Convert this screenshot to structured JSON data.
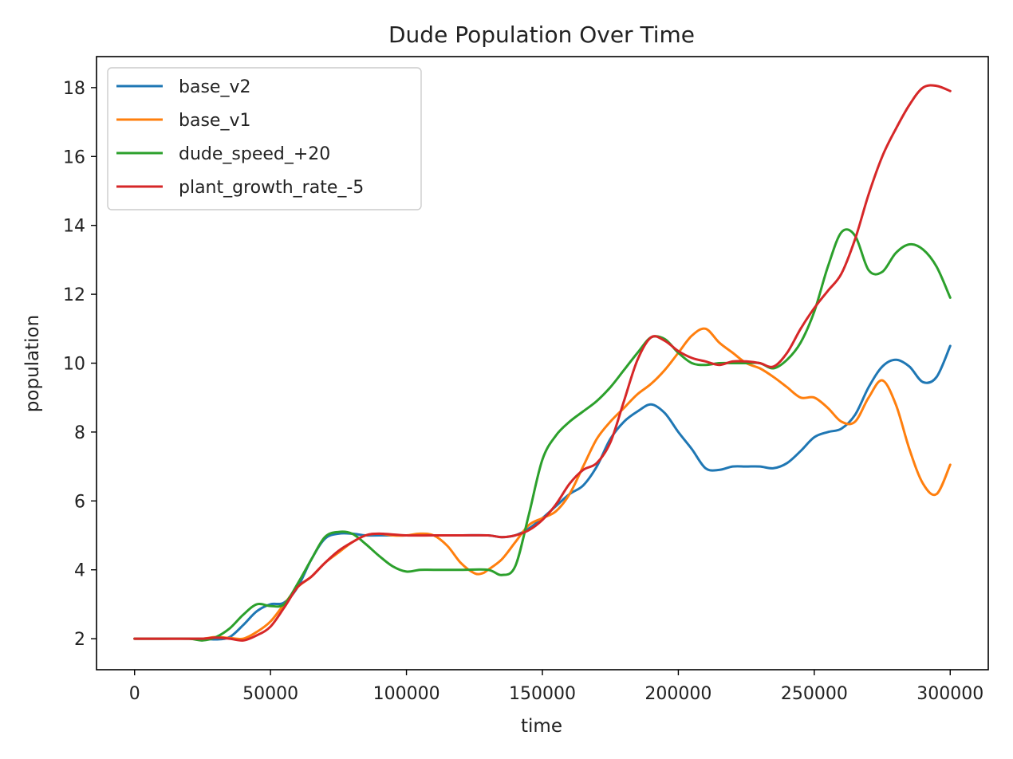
{
  "chart_data": {
    "type": "line",
    "title": "Dude Population Over Time",
    "xlabel": "time",
    "ylabel": "population",
    "xlim": [
      -14000,
      314000
    ],
    "ylim": [
      1.1,
      18.9
    ],
    "xticks": [
      0,
      50000,
      100000,
      150000,
      200000,
      250000,
      300000
    ],
    "yticks": [
      2,
      4,
      6,
      8,
      10,
      12,
      14,
      16,
      18
    ],
    "grid": false,
    "legend": "top-left",
    "series": [
      {
        "name": "base_v2",
        "color": "#1f77b4",
        "x": [
          0,
          10000,
          20000,
          25000,
          30000,
          35000,
          40000,
          45000,
          50000,
          55000,
          60000,
          65000,
          70000,
          75000,
          80000,
          85000,
          90000,
          100000,
          110000,
          120000,
          130000,
          135000,
          140000,
          145000,
          150000,
          155000,
          160000,
          165000,
          170000,
          175000,
          180000,
          185000,
          190000,
          195000,
          200000,
          205000,
          210000,
          215000,
          220000,
          225000,
          230000,
          235000,
          240000,
          245000,
          250000,
          255000,
          260000,
          265000,
          270000,
          275000,
          280000,
          285000,
          290000,
          295000,
          300000
        ],
        "y": [
          2,
          2,
          2,
          2,
          1.98,
          2.05,
          2.4,
          2.8,
          3.0,
          3.05,
          3.5,
          4.3,
          4.9,
          5.05,
          5.05,
          5.0,
          5.0,
          5.0,
          5.0,
          5.0,
          5.0,
          4.95,
          5.0,
          5.2,
          5.5,
          5.85,
          6.2,
          6.45,
          7.0,
          7.8,
          8.3,
          8.6,
          8.8,
          8.55,
          8.0,
          7.5,
          6.95,
          6.9,
          7.0,
          7.0,
          7.0,
          6.95,
          7.1,
          7.45,
          7.85,
          8.0,
          8.1,
          8.5,
          9.3,
          9.9,
          10.1,
          9.9,
          9.45,
          9.6,
          10.5
        ]
      },
      {
        "name": "base_v1",
        "color": "#ff7f0e",
        "x": [
          0,
          10000,
          20000,
          25000,
          30000,
          35000,
          40000,
          45000,
          50000,
          55000,
          60000,
          65000,
          70000,
          75000,
          80000,
          85000,
          90000,
          95000,
          100000,
          105000,
          110000,
          115000,
          120000,
          125000,
          128000,
          130000,
          135000,
          140000,
          145000,
          150000,
          155000,
          160000,
          165000,
          170000,
          175000,
          180000,
          185000,
          190000,
          195000,
          200000,
          205000,
          210000,
          215000,
          220000,
          225000,
          230000,
          235000,
          240000,
          245000,
          250000,
          255000,
          260000,
          265000,
          270000,
          275000,
          280000,
          285000,
          290000,
          295000,
          300000
        ],
        "y": [
          2,
          2,
          2,
          2,
          2.05,
          2.02,
          2.0,
          2.2,
          2.5,
          3.0,
          3.5,
          3.8,
          4.2,
          4.5,
          4.8,
          5.0,
          5.05,
          5.0,
          5.0,
          5.05,
          5.0,
          4.7,
          4.2,
          3.9,
          3.9,
          4.0,
          4.3,
          4.8,
          5.3,
          5.5,
          5.7,
          6.2,
          7.0,
          7.8,
          8.3,
          8.7,
          9.1,
          9.4,
          9.8,
          10.3,
          10.8,
          11.0,
          10.6,
          10.3,
          10.0,
          9.85,
          9.6,
          9.3,
          9.0,
          9.0,
          8.7,
          8.3,
          8.3,
          9.0,
          9.5,
          8.8,
          7.5,
          6.5,
          6.2,
          7.05
        ]
      },
      {
        "name": "dude_speed_+20",
        "color": "#2ca02c",
        "x": [
          0,
          10000,
          20000,
          25000,
          30000,
          35000,
          40000,
          45000,
          50000,
          55000,
          60000,
          65000,
          70000,
          75000,
          80000,
          85000,
          90000,
          95000,
          100000,
          105000,
          110000,
          120000,
          130000,
          135000,
          140000,
          145000,
          150000,
          155000,
          160000,
          165000,
          170000,
          175000,
          180000,
          185000,
          190000,
          195000,
          200000,
          205000,
          210000,
          215000,
          220000,
          225000,
          230000,
          235000,
          240000,
          245000,
          250000,
          255000,
          260000,
          265000,
          270000,
          275000,
          280000,
          285000,
          290000,
          295000,
          300000
        ],
        "y": [
          2,
          2,
          2,
          1.95,
          2.05,
          2.3,
          2.7,
          3.0,
          2.95,
          3.0,
          3.6,
          4.3,
          4.95,
          5.1,
          5.05,
          4.75,
          4.4,
          4.1,
          3.95,
          4.0,
          4.0,
          4.0,
          4.0,
          3.85,
          4.1,
          5.6,
          7.2,
          7.9,
          8.3,
          8.6,
          8.9,
          9.3,
          9.8,
          10.3,
          10.75,
          10.7,
          10.3,
          10.0,
          9.95,
          10.0,
          10.0,
          10.0,
          10.0,
          9.85,
          10.1,
          10.6,
          11.5,
          12.8,
          13.8,
          13.7,
          12.7,
          12.65,
          13.2,
          13.45,
          13.3,
          12.8,
          11.9
        ]
      },
      {
        "name": "plant_growth_rate_-5",
        "color": "#d62728",
        "x": [
          0,
          10000,
          20000,
          25000,
          30000,
          35000,
          40000,
          45000,
          50000,
          55000,
          60000,
          65000,
          70000,
          75000,
          80000,
          85000,
          90000,
          100000,
          110000,
          120000,
          130000,
          135000,
          140000,
          145000,
          150000,
          155000,
          160000,
          165000,
          170000,
          175000,
          180000,
          185000,
          190000,
          195000,
          200000,
          205000,
          210000,
          215000,
          220000,
          225000,
          230000,
          235000,
          240000,
          245000,
          250000,
          255000,
          260000,
          265000,
          270000,
          275000,
          280000,
          285000,
          290000,
          295000,
          300000
        ],
        "y": [
          2,
          2,
          2,
          2,
          2.03,
          2.0,
          1.95,
          2.1,
          2.35,
          2.9,
          3.5,
          3.8,
          4.2,
          4.55,
          4.8,
          5.0,
          5.05,
          5.0,
          5.0,
          5.0,
          5.0,
          4.95,
          5.0,
          5.15,
          5.45,
          5.9,
          6.5,
          6.9,
          7.1,
          7.7,
          8.9,
          10.1,
          10.75,
          10.65,
          10.35,
          10.15,
          10.05,
          9.95,
          10.05,
          10.05,
          10.0,
          9.9,
          10.3,
          11.0,
          11.6,
          12.1,
          12.6,
          13.6,
          14.9,
          16.0,
          16.8,
          17.5,
          18.0,
          18.05,
          17.9
        ]
      }
    ]
  }
}
